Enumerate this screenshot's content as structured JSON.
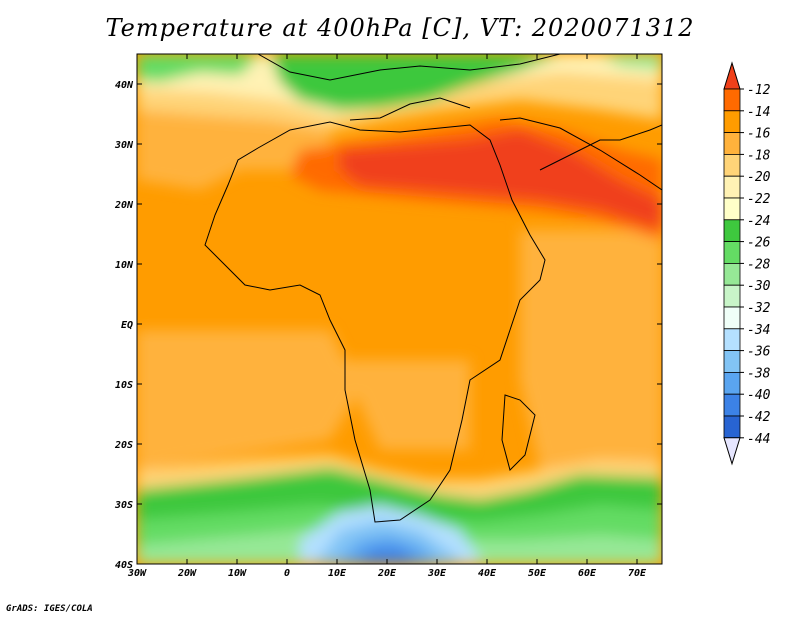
{
  "title": "Temperature at 400hPa [C], VT: 2020071312",
  "credit": "GrADS: IGES/COLA",
  "map": {
    "lat_ticks": [
      "40N",
      "30N",
      "20N",
      "10N",
      "EQ",
      "10S",
      "20S",
      "30S",
      "40S"
    ],
    "lon_ticks": [
      "30W",
      "20W",
      "10W",
      "0",
      "10E",
      "20E",
      "30E",
      "40E",
      "50E",
      "60E",
      "70E"
    ],
    "lon_range": [
      -30,
      75
    ],
    "lat_range": [
      -40,
      45
    ]
  },
  "colorbar": {
    "labels": [
      "-12",
      "-14",
      "-16",
      "-18",
      "-20",
      "-22",
      "-24",
      "-26",
      "-28",
      "-30",
      "-32",
      "-34",
      "-36",
      "-38",
      "-40",
      "-42",
      "-44"
    ],
    "colors": [
      "#f0401a",
      "#ff6a00",
      "#ff9c00",
      "#ffb23c",
      "#ffd478",
      "#fff2b4",
      "#ffffc8",
      "#3ec83e",
      "#64dc64",
      "#96e896",
      "#c8f5c8",
      "#ffffff",
      "#b4e0ff",
      "#82c4f5",
      "#5aa5f0",
      "#3c82e6",
      "#2864d2",
      "#143cb4",
      "#0a1e78",
      "#e6e6ff"
    ]
  }
}
